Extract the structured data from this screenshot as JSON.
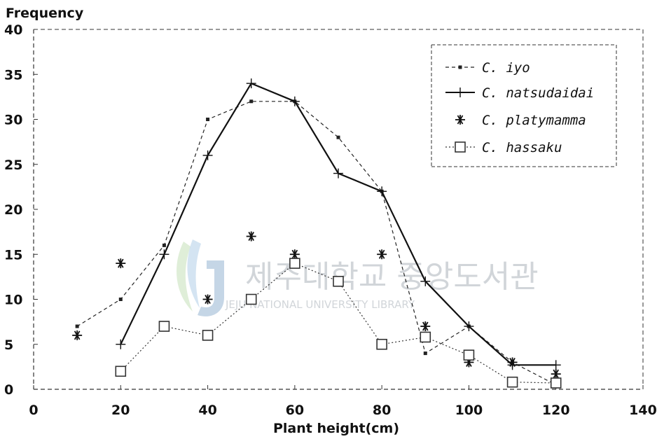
{
  "chart_data": {
    "type": "line",
    "xlabel": "Plant height(cm)",
    "ylabel": "Frequency",
    "xlim": [
      0,
      140
    ],
    "ylim": [
      0,
      40
    ],
    "x_ticks": [
      0,
      20,
      40,
      60,
      80,
      100,
      120,
      140
    ],
    "y_ticks": [
      0,
      5,
      10,
      15,
      20,
      25,
      30,
      35,
      40
    ],
    "grid": false,
    "legend_position": "top-right",
    "series": [
      {
        "name": "C. iyo",
        "line": "dashed",
        "marker": "small-square",
        "color": "#222222",
        "points": [
          [
            10,
            7
          ],
          [
            20,
            10
          ],
          [
            30,
            16
          ],
          [
            40,
            30
          ],
          [
            50,
            32
          ],
          [
            60,
            32
          ],
          [
            70,
            28
          ],
          [
            80,
            22
          ],
          [
            90,
            4
          ],
          [
            100,
            7
          ],
          [
            110,
            3
          ],
          [
            120,
            0.5
          ]
        ]
      },
      {
        "name": "C. natsudaidai",
        "line": "solid",
        "marker": "plus",
        "color": "#111111",
        "points": [
          [
            20,
            5
          ],
          [
            30,
            15
          ],
          [
            40,
            26
          ],
          [
            50,
            34
          ],
          [
            60,
            32
          ],
          [
            70,
            24
          ],
          [
            80,
            22
          ],
          [
            90,
            12
          ],
          [
            100,
            7
          ],
          [
            110,
            2.7
          ],
          [
            120,
            2.7
          ]
        ]
      },
      {
        "name": "C. platymamma",
        "line": "none",
        "marker": "asterisk",
        "color": "#111111",
        "points": [
          [
            10,
            6
          ],
          [
            20,
            14
          ],
          [
            30,
            7
          ],
          [
            40,
            10
          ],
          [
            50,
            17
          ],
          [
            60,
            15
          ],
          [
            70,
            12
          ],
          [
            80,
            15
          ],
          [
            90,
            7
          ],
          [
            100,
            3
          ],
          [
            110,
            3
          ],
          [
            120,
            1.7
          ]
        ]
      },
      {
        "name": "C. hassaku",
        "line": "dotted",
        "marker": "open-square",
        "color": "#333333",
        "points": [
          [
            20,
            2
          ],
          [
            30,
            7
          ],
          [
            40,
            6
          ],
          [
            50,
            10
          ],
          [
            60,
            14
          ],
          [
            70,
            12
          ],
          [
            80,
            5
          ],
          [
            90,
            5.8
          ],
          [
            100,
            3.8
          ],
          [
            110,
            0.8
          ],
          [
            120,
            0.7
          ]
        ]
      }
    ]
  },
  "watermark": {
    "korean": "제주대학교 중앙도서관",
    "english": "JEJU NATIONAL UNIVERSITY LIBRARY"
  }
}
